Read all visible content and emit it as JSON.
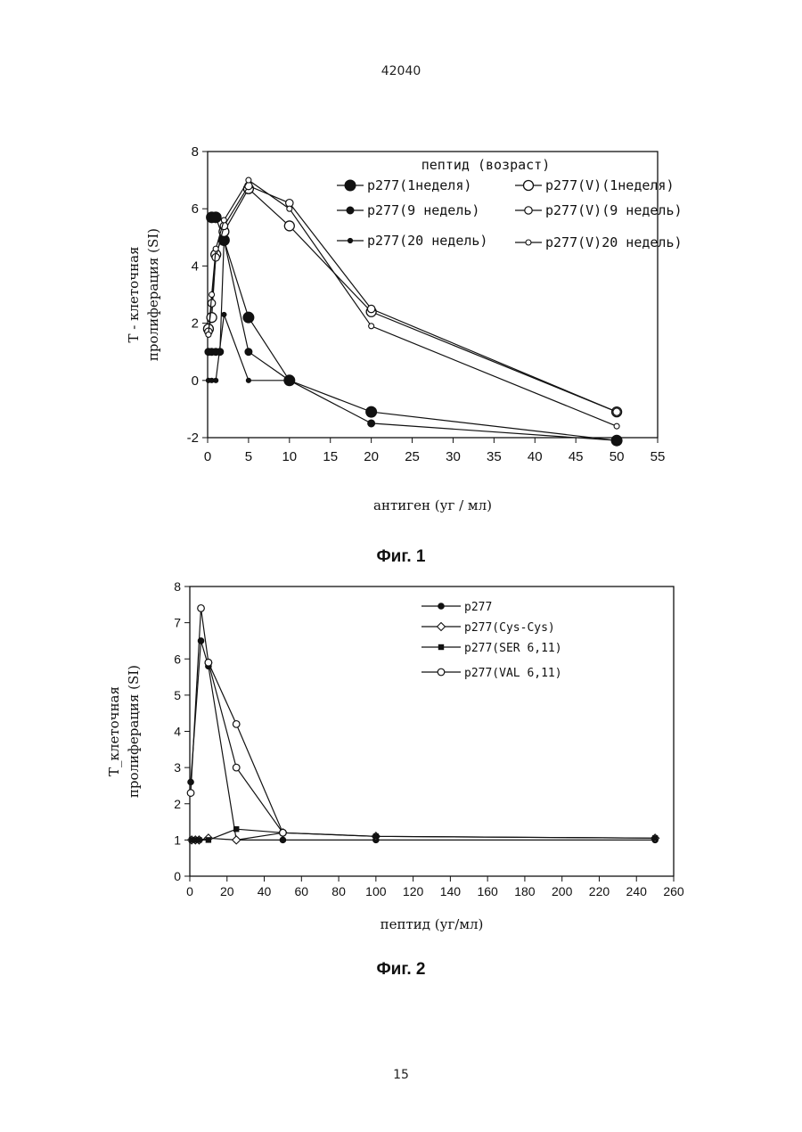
{
  "header": {
    "doc_number": "42040"
  },
  "footer": {
    "page_number": "15"
  },
  "figures": [
    {
      "caption": "Фиг. 1"
    },
    {
      "caption": "Фиг. 2"
    }
  ],
  "chart_data": [
    {
      "type": "line",
      "title": "",
      "ylabel_lines": [
        "Т - клеточная",
        "пролиферация (SI)"
      ],
      "xlabel": "антиген (уг / мл)",
      "legend_title": "пептид (возраст)",
      "xlim": [
        0,
        55
      ],
      "ylim": [
        -2,
        8
      ],
      "xticks": [
        "0",
        "5",
        "10",
        "15",
        "20",
        "25",
        "30",
        "35",
        "40",
        "45",
        "50",
        "55"
      ],
      "yticks": [
        "-2",
        "0",
        "2",
        "4",
        "6",
        "8"
      ],
      "series": [
        {
          "name": "p277(1неделя)",
          "marker": "filled-large",
          "x": [
            0.5,
            1,
            2,
            5,
            10,
            20,
            50
          ],
          "y": [
            5.7,
            5.7,
            4.9,
            2.2,
            0,
            -1.1,
            -2.1
          ]
        },
        {
          "name": "p277(9 недель)",
          "marker": "filled-medium",
          "x": [
            0.1,
            0.5,
            1,
            1.5,
            2,
            5,
            10,
            20,
            50
          ],
          "y": [
            1,
            1,
            1,
            1,
            4.9,
            1,
            0,
            -1.5,
            -2.1
          ]
        },
        {
          "name": "p277(20 недель)",
          "marker": "filled-small",
          "x": [
            0.1,
            0.5,
            1,
            2,
            5,
            10
          ],
          "y": [
            0,
            0,
            0,
            2.3,
            0,
            0
          ]
        },
        {
          "name": "p277(V)(1неделя)",
          "marker": "open-large",
          "x": [
            0.1,
            0.5,
            1,
            2,
            5,
            10,
            20,
            50
          ],
          "y": [
            1.8,
            2.2,
            4.4,
            5.2,
            6.7,
            5.4,
            2.4,
            -1.1
          ]
        },
        {
          "name": "p277(V)(9 недель)",
          "marker": "open-medium",
          "x": [
            0.1,
            0.5,
            1,
            2,
            5,
            10,
            20,
            50
          ],
          "y": [
            1.7,
            2.7,
            4.3,
            5.4,
            6.8,
            6.2,
            2.5,
            -1.1
          ]
        },
        {
          "name": "p277(V)20 недель)",
          "marker": "open-small",
          "x": [
            0.1,
            0.5,
            1,
            2,
            5,
            10,
            20,
            50
          ],
          "y": [
            1.6,
            3.0,
            4.6,
            5.6,
            7.0,
            6.0,
            1.9,
            -1.6
          ]
        }
      ]
    },
    {
      "type": "line",
      "title": "",
      "ylabel_lines": [
        "Т_клеточная",
        "пролиферация (SI)"
      ],
      "xlabel": "пептид (уг/мл)",
      "xlim": [
        0,
        260
      ],
      "ylim": [
        0,
        8
      ],
      "xticks": [
        "0",
        "20",
        "40",
        "60",
        "80",
        "100",
        "120",
        "140",
        "160",
        "180",
        "200",
        "220",
        "240",
        "260"
      ],
      "yticks": [
        "0",
        "1",
        "2",
        "3",
        "4",
        "5",
        "6",
        "7",
        "8"
      ],
      "series": [
        {
          "name": "p277",
          "marker": "filled-circle",
          "x": [
            0.5,
            6,
            10,
            25,
            50,
            100,
            250
          ],
          "y": [
            2.6,
            6.5,
            5.8,
            1.0,
            1.0,
            1.0,
            1.0
          ]
        },
        {
          "name": "p277(Cys-Cys)",
          "marker": "open-diamond",
          "x": [
            1,
            3,
            5,
            10,
            25,
            50,
            100,
            250
          ],
          "y": [
            1.0,
            1.0,
            1.0,
            1.05,
            1.0,
            1.2,
            1.1,
            1.05
          ]
        },
        {
          "name": "p277(SER 6,11)",
          "marker": "filled-square",
          "x": [
            1,
            3,
            5,
            10,
            25,
            50,
            100,
            250
          ],
          "y": [
            1.0,
            1.0,
            1.0,
            1.0,
            1.3,
            1.2,
            1.1,
            1.05
          ]
        },
        {
          "name": "p277(VAL 6,11)",
          "marker": "open-circle",
          "x": [
            0.5,
            6,
            10,
            25,
            50
          ],
          "y": [
            2.3,
            7.4,
            5.9,
            4.2,
            1.2
          ]
        },
        {
          "name": "",
          "marker": "open-circle",
          "x": [
            10,
            25,
            50
          ],
          "y": [
            5.9,
            3.0,
            1.2
          ]
        }
      ]
    }
  ]
}
